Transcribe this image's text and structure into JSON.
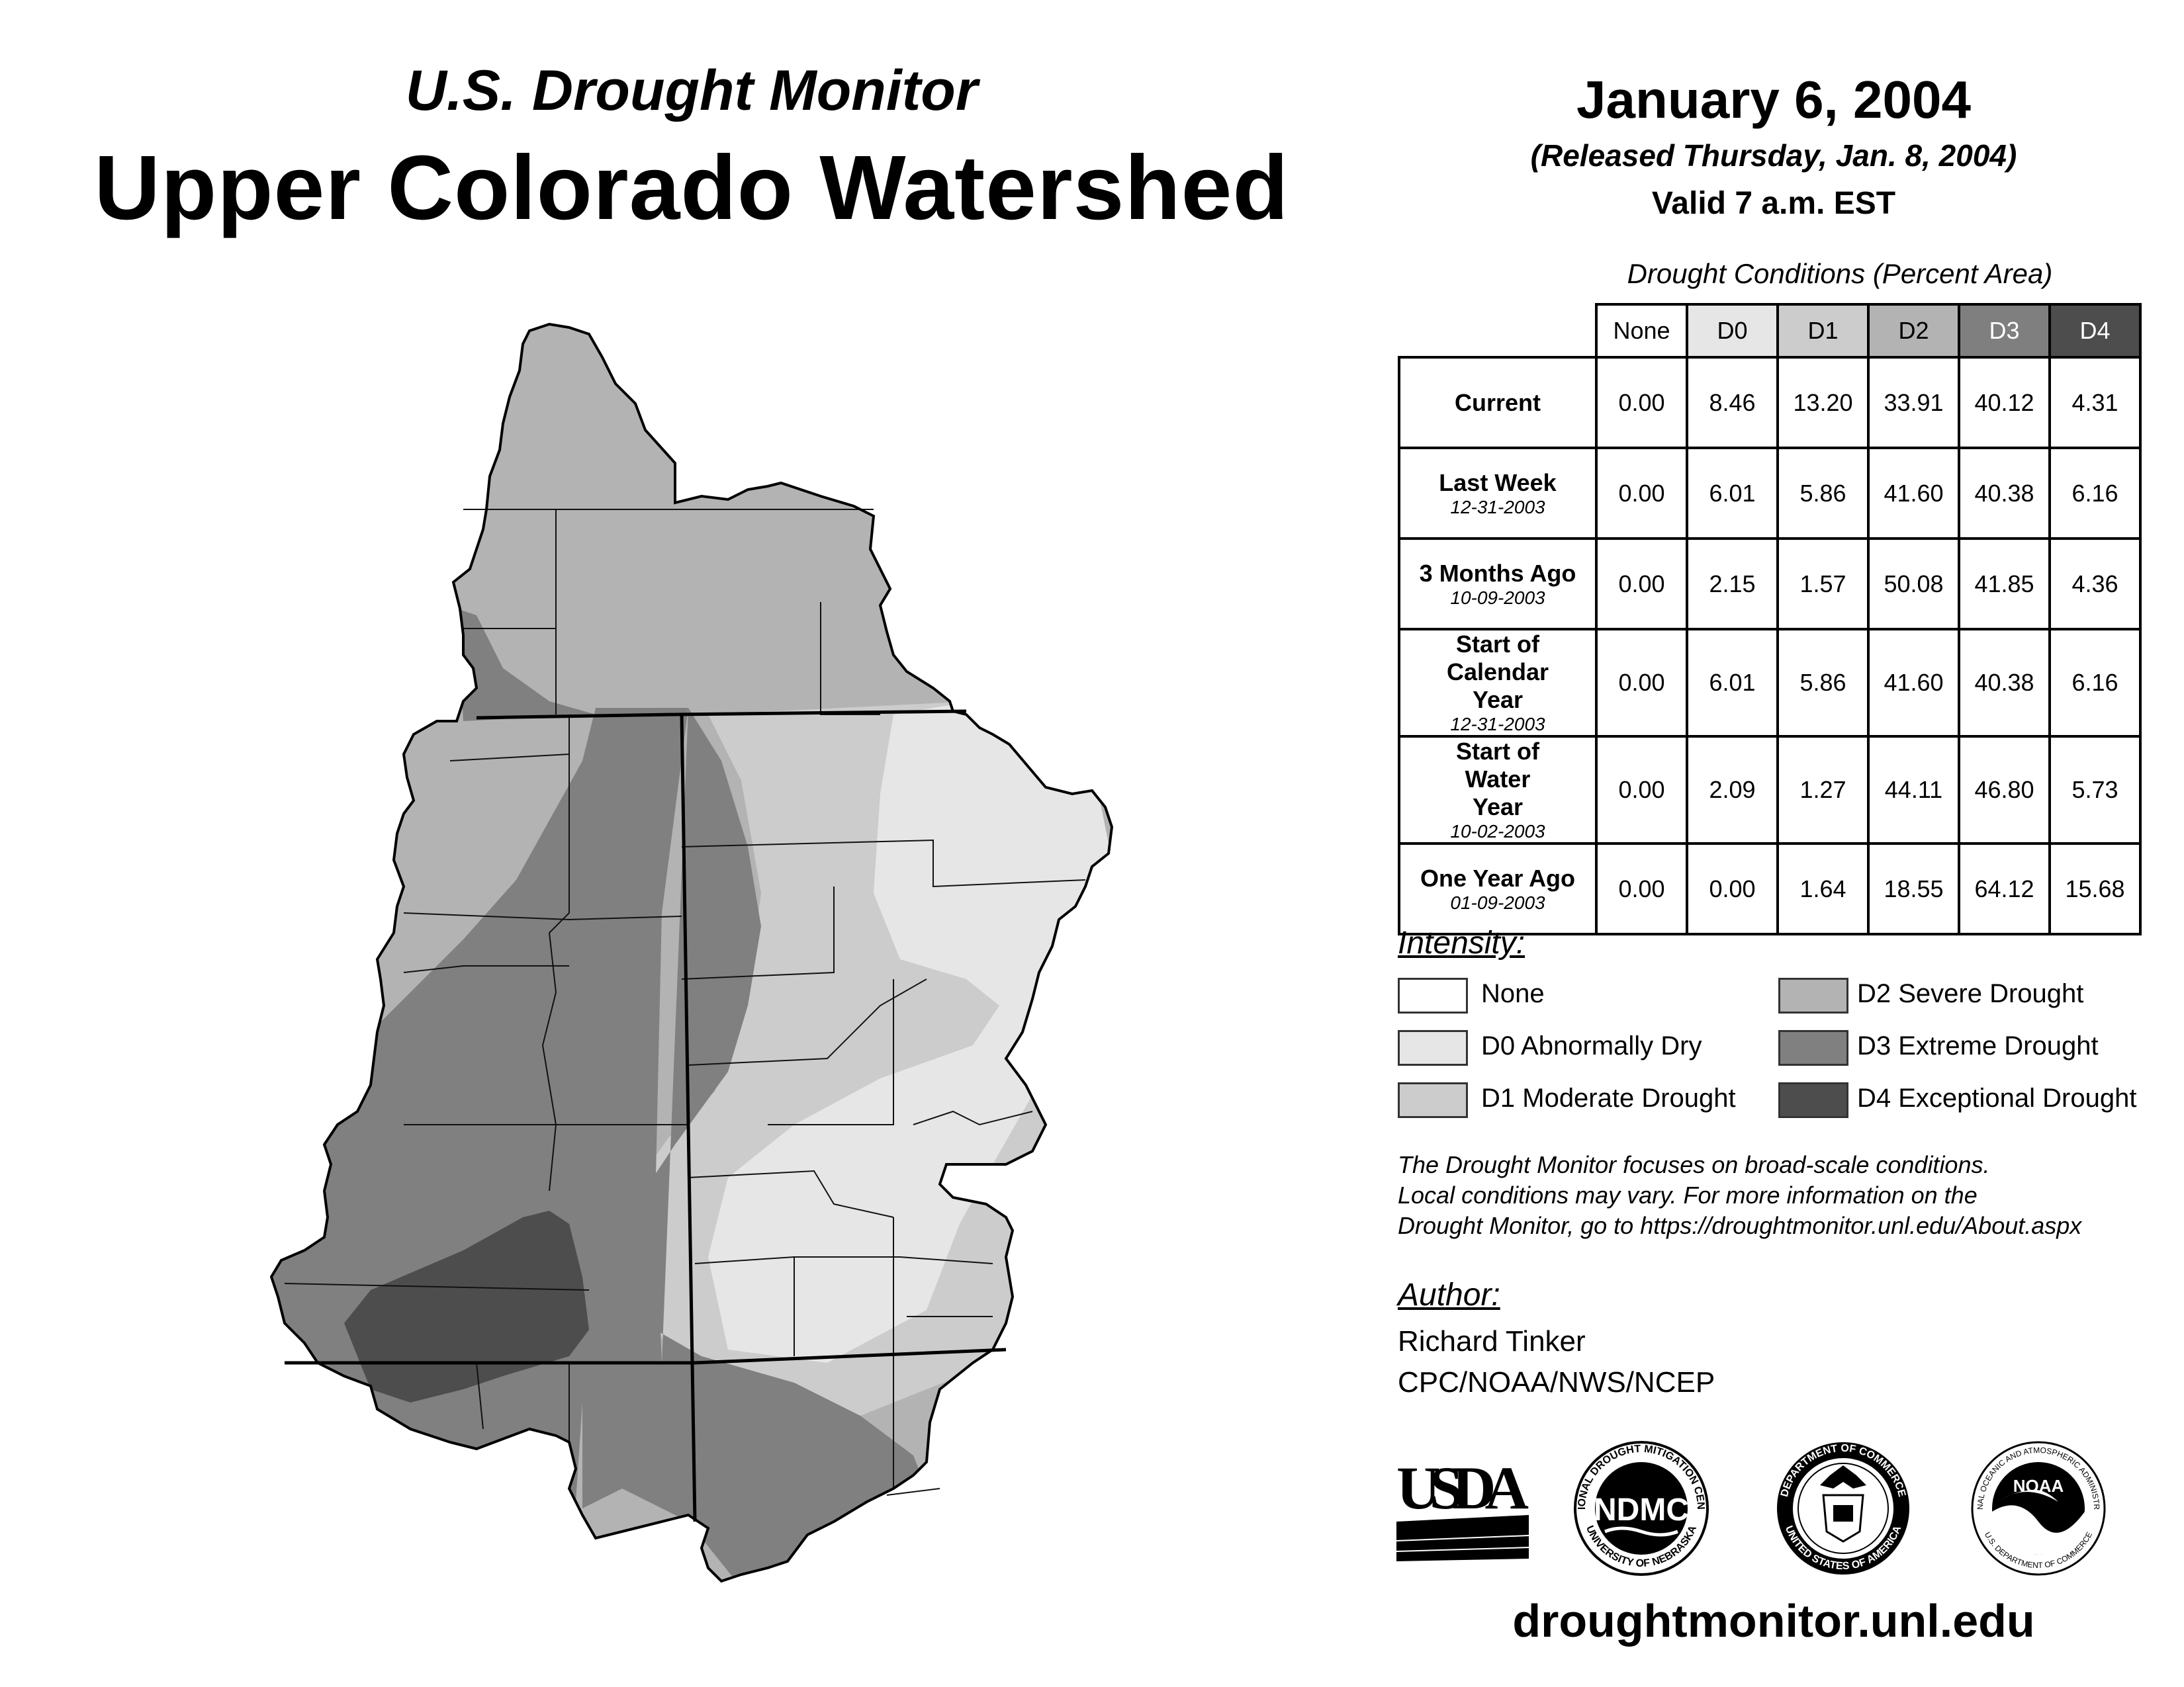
{
  "header": {
    "subtitle": "U.S. Drought Monitor",
    "title": "Upper Colorado Watershed",
    "date": "January 6, 2004",
    "released": "(Released Thursday, Jan. 8, 2004)",
    "valid": "Valid 7 a.m. EST"
  },
  "table": {
    "caption": "Drought Conditions (Percent Area)",
    "columns": [
      "None",
      "D0",
      "D1",
      "D2",
      "D3",
      "D4"
    ],
    "rows": [
      {
        "label": "Current",
        "date": "",
        "values": [
          "0.00",
          "8.46",
          "13.20",
          "33.91",
          "40.12",
          "4.31"
        ]
      },
      {
        "label": "Last Week",
        "date": "12-31-2003",
        "values": [
          "0.00",
          "6.01",
          "5.86",
          "41.60",
          "40.38",
          "6.16"
        ]
      },
      {
        "label": "3 Months Ago",
        "date": "10-09-2003",
        "values": [
          "0.00",
          "2.15",
          "1.57",
          "50.08",
          "41.85",
          "4.36"
        ]
      },
      {
        "label": "Start of Calendar Year",
        "date": "12-31-2003",
        "values": [
          "0.00",
          "6.01",
          "5.86",
          "41.60",
          "40.38",
          "6.16"
        ]
      },
      {
        "label": "Start of Water Year",
        "date": "10-02-2003",
        "values": [
          "0.00",
          "2.09",
          "1.27",
          "44.11",
          "46.80",
          "5.73"
        ]
      },
      {
        "label": "One Year Ago",
        "date": "01-09-2003",
        "values": [
          "0.00",
          "0.00",
          "1.64",
          "18.55",
          "64.12",
          "15.68"
        ]
      }
    ]
  },
  "legend": {
    "title": "Intensity:",
    "items": [
      {
        "label": "None",
        "color": "#ffffff"
      },
      {
        "label": "D0 Abnormally Dry",
        "color": "#e6e6e6"
      },
      {
        "label": "D1 Moderate Drought",
        "color": "#cccccc"
      },
      {
        "label": "D2 Severe Drought",
        "color": "#b3b3b3"
      },
      {
        "label": "D3 Extreme Drought",
        "color": "#808080"
      },
      {
        "label": "D4 Exceptional Drought",
        "color": "#4d4d4d"
      }
    ]
  },
  "note": {
    "line1": "The Drought Monitor focuses on broad-scale conditions.",
    "line2": "Local conditions may vary. For more information on the",
    "line3": "Drought Monitor, go to https://droughtmonitor.unl.edu/About.aspx"
  },
  "author": {
    "title": "Author:",
    "name": "Richard Tinker",
    "org": "CPC/NOAA/NWS/NCEP"
  },
  "logos": {
    "usda": "USDA",
    "ndmc": "NDMC",
    "ndmc_ring_top": "NATIONAL DROUGHT MITIGATION CENTER",
    "ndmc_ring_bottom": "UNIVERSITY OF NEBRASKA",
    "commerce_ring_top": "DEPARTMENT OF COMMERCE",
    "commerce_ring_bottom": "UNITED STATES OF AMERICA",
    "noaa": "NOAA",
    "noaa_ring_top": "NATIONAL OCEANIC AND ATMOSPHERIC ADMINISTRATION",
    "noaa_ring_bottom": "U.S. DEPARTMENT OF COMMERCE"
  },
  "footer": {
    "url": "droughtmonitor.unl.edu"
  }
}
